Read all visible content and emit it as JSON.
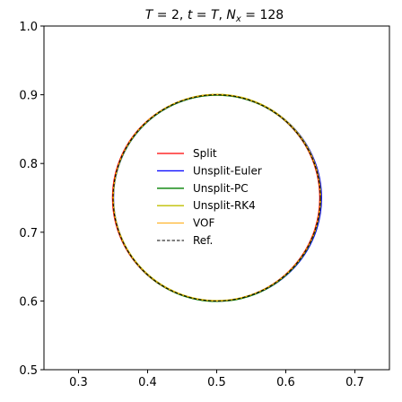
{
  "chart_data": {
    "type": "line",
    "title_parts": {
      "t1": "T",
      "t2": " = 2, ",
      "t3": "t",
      "t4": " = ",
      "t5": "T",
      "t6": ", ",
      "t7": "N",
      "t8": "x",
      "t9": " = 128"
    },
    "xlabel": "",
    "ylabel": "",
    "xlim": [
      0.25,
      0.75
    ],
    "ylim": [
      0.5,
      1.0
    ],
    "xticks": [
      0.3,
      0.4,
      0.5,
      0.6,
      0.7
    ],
    "yticks": [
      0.5,
      0.6,
      0.7,
      0.8,
      0.9,
      1.0
    ],
    "xtick_labels": [
      "0.3",
      "0.4",
      "0.5",
      "0.6",
      "0.7"
    ],
    "ytick_labels": [
      "0.5",
      "0.6",
      "0.7",
      "0.8",
      "0.9",
      "1.0"
    ],
    "grid": false,
    "legend_position": "center",
    "shape": "circle",
    "circle": {
      "center_x": 0.5,
      "center_y": 0.75,
      "radius": 0.15
    },
    "series": [
      {
        "name": "Split",
        "color": "#ff0000",
        "dash": "solid",
        "line_width": 1.3
      },
      {
        "name": "Unsplit-Euler",
        "color": "#0000ff",
        "dash": "solid",
        "line_width": 1.3
      },
      {
        "name": "Unsplit-PC",
        "color": "#008000",
        "dash": "solid",
        "line_width": 1.3
      },
      {
        "name": "Unsplit-RK4",
        "color": "#bfbf00",
        "dash": "solid",
        "line_width": 1.3
      },
      {
        "name": "VOF",
        "color": "#ffa500",
        "dash": "solid",
        "line_width": 1.0
      },
      {
        "name": "Ref.",
        "color": "#000000",
        "dash": "dashed",
        "line_width": 1.0
      }
    ]
  }
}
